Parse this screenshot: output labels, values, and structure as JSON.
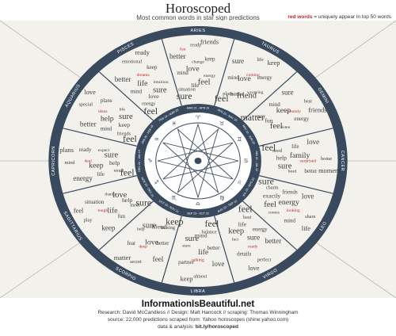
{
  "header": {
    "title": "Horoscoped",
    "subtitle": "Most common words in star sign predictions",
    "legend_red": "red words",
    "legend_text": "= uniquely appear in top 50 words"
  },
  "footer": {
    "site": "InformationIsBeautiful.net",
    "credits": "Research: David McCandless // Design: Matt Hancock // scraping: Thomas Winningham",
    "source": "source: 22,000 predictions scraped from: Yahoo horoscopes (shine.yahoo.com)",
    "data_label": "data & analysis:",
    "data_link": "bit.ly/horoscoped"
  },
  "colors": {
    "ring": "#3a4a5e",
    "text": "#3d3d3d",
    "unique": "#c0282b",
    "bg": "#f2f1ec"
  },
  "signs": [
    {
      "name": "ARIES",
      "dates": "MAR 21 - APR 19",
      "glyph": "♈"
    },
    {
      "name": "TAURUS",
      "dates": "APR 20 - MAY 20",
      "glyph": "♉"
    },
    {
      "name": "GEMINI",
      "dates": "MAY 21 - JUN 20",
      "glyph": "♊"
    },
    {
      "name": "CANCER",
      "dates": "JUN 21 - JUL 22",
      "glyph": "♋"
    },
    {
      "name": "LEO",
      "dates": "JUL 23 - AUG 22",
      "glyph": "♌"
    },
    {
      "name": "VIRGO",
      "dates": "AUG 23 - SEP 22",
      "glyph": "♍"
    },
    {
      "name": "LIBRA",
      "dates": "SEP 23 - OCT 22",
      "glyph": "♎"
    },
    {
      "name": "SCORPIO",
      "dates": "OCT 23 - NOV 21",
      "glyph": "♏"
    },
    {
      "name": "SAGITTARIUS",
      "dates": "NOV 22 - DEC 21",
      "glyph": "♐"
    },
    {
      "name": "CAPRICORN",
      "dates": "DEC 22 - JAN 19",
      "glyph": "♑"
    },
    {
      "name": "AQUARIUS",
      "dates": "JAN 20 - FEB 18",
      "glyph": "♒"
    },
    {
      "name": "PISCES",
      "dates": "FEB 19 - MAR 20",
      "glyph": "♓"
    }
  ],
  "words": [
    [
      "sure",
      "feel",
      "love",
      "better",
      "friends",
      "life",
      "mind",
      "keep",
      "ready",
      "situation",
      "energy",
      "change",
      "fun"
    ],
    [
      "feel",
      "friend",
      "love",
      "sure",
      "keep",
      "better",
      "mind",
      "energy",
      "life",
      "plans",
      "worrying",
      "coming"
    ],
    [
      "matter",
      "feel",
      "keep",
      "sure",
      "friends",
      "fun",
      "mind",
      "energy",
      "best",
      "easy",
      "listen",
      "certainly"
    ],
    [
      "feel",
      "sure",
      "family",
      "love",
      "moment",
      "help",
      "life",
      "better",
      "home",
      "need",
      "head",
      "surprised"
    ],
    [
      "sure",
      "feel",
      "energy",
      "love",
      "life",
      "exactly",
      "friends",
      "mind",
      "share",
      "charm",
      "comes",
      "looking"
    ],
    [
      "feel",
      "keep",
      "sure",
      "better",
      "love",
      "life",
      "energy",
      "details",
      "perfect",
      "best",
      "fact",
      "ready"
    ],
    [
      "feel",
      "sure",
      "life",
      "love",
      "keep",
      "mind",
      "better",
      "partner",
      "almost",
      "balance",
      "stars",
      "talking"
    ],
    [
      "keep",
      "sure",
      "love",
      "feel",
      "matter",
      "friend",
      "better",
      "fear",
      "secret",
      "talking",
      "help",
      "deep"
    ],
    [
      "sure",
      "love",
      "life",
      "keep",
      "feel",
      "help",
      "fun",
      "situation",
      "play",
      "meet",
      "thanks",
      "tough"
    ],
    [
      "feel",
      "sure",
      "keep",
      "energy",
      "plans",
      "help",
      "life",
      "ready",
      "mind",
      "work",
      "expect",
      "deal"
    ],
    [
      "feel",
      "sure",
      "help",
      "better",
      "love",
      "keep",
      "mind",
      "plans",
      "special",
      "friends",
      "life",
      "ideas"
    ],
    [
      "feel",
      "sure",
      "life",
      "better",
      "ready",
      "love",
      "mind",
      "keep",
      "emotional",
      "energy",
      "intuition",
      "dreams"
    ]
  ]
}
